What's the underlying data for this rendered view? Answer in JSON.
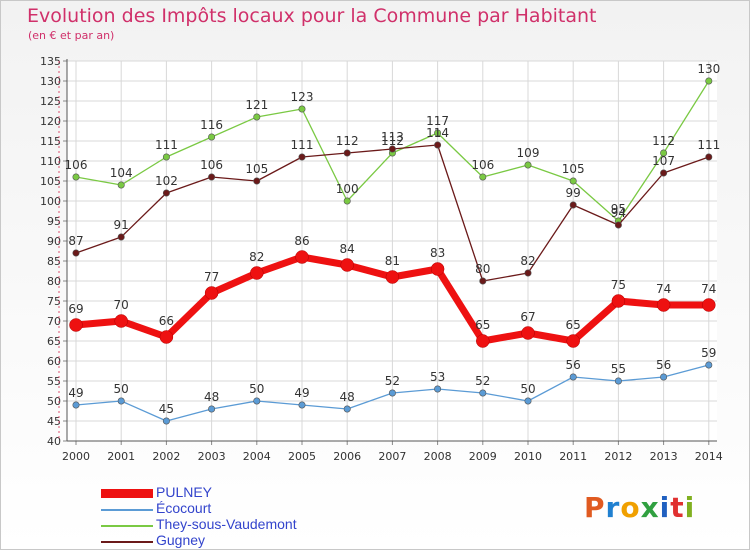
{
  "header": {
    "title": "Evolution des Impôts locaux pour la Commune par Habitant",
    "subtitle": "(en € et par an)"
  },
  "logo": {
    "text": "Proxiti",
    "colors": [
      "#e05a20",
      "#2080d0",
      "#f0a000",
      "#30a040",
      "#2060c0",
      "#e03030",
      "#80b020"
    ]
  },
  "chart_data": {
    "type": "line",
    "title": "Evolution des Impôts locaux pour la Commune par Habitant",
    "subtitle": "(en € et par an)",
    "xlabel": "",
    "ylabel": "",
    "x": [
      "2000",
      "2001",
      "2002",
      "2003",
      "2004",
      "2005",
      "2006",
      "2007",
      "2008",
      "2009",
      "2010",
      "2011",
      "2012",
      "2013",
      "2014"
    ],
    "ylim": [
      40,
      135
    ],
    "yticks": [
      40,
      45,
      50,
      55,
      60,
      65,
      70,
      75,
      80,
      85,
      90,
      95,
      100,
      105,
      110,
      115,
      120,
      125,
      130,
      135
    ],
    "grid": true,
    "legend_position": "bottom-left",
    "series": [
      {
        "name": "PULNEY",
        "color": "#ee1111",
        "thick": true,
        "values": [
          69,
          70,
          66,
          77,
          82,
          86,
          84,
          81,
          83,
          65,
          67,
          65,
          75,
          74,
          74
        ]
      },
      {
        "name": "Écocourt",
        "color": "#5b9bd5",
        "thick": false,
        "values": [
          49,
          50,
          45,
          48,
          50,
          49,
          48,
          52,
          53,
          52,
          50,
          56,
          55,
          56,
          59
        ]
      },
      {
        "name": "They-sous-Vaudemont",
        "color": "#7ac943",
        "thick": false,
        "values": [
          106,
          104,
          111,
          116,
          121,
          123,
          100,
          112,
          117,
          106,
          109,
          105,
          95,
          112,
          130
        ]
      },
      {
        "name": "Gugney",
        "color": "#6b1a1a",
        "thick": false,
        "values": [
          87,
          91,
          102,
          106,
          105,
          111,
          112,
          113,
          114,
          80,
          82,
          99,
          94,
          107,
          111
        ]
      }
    ]
  }
}
